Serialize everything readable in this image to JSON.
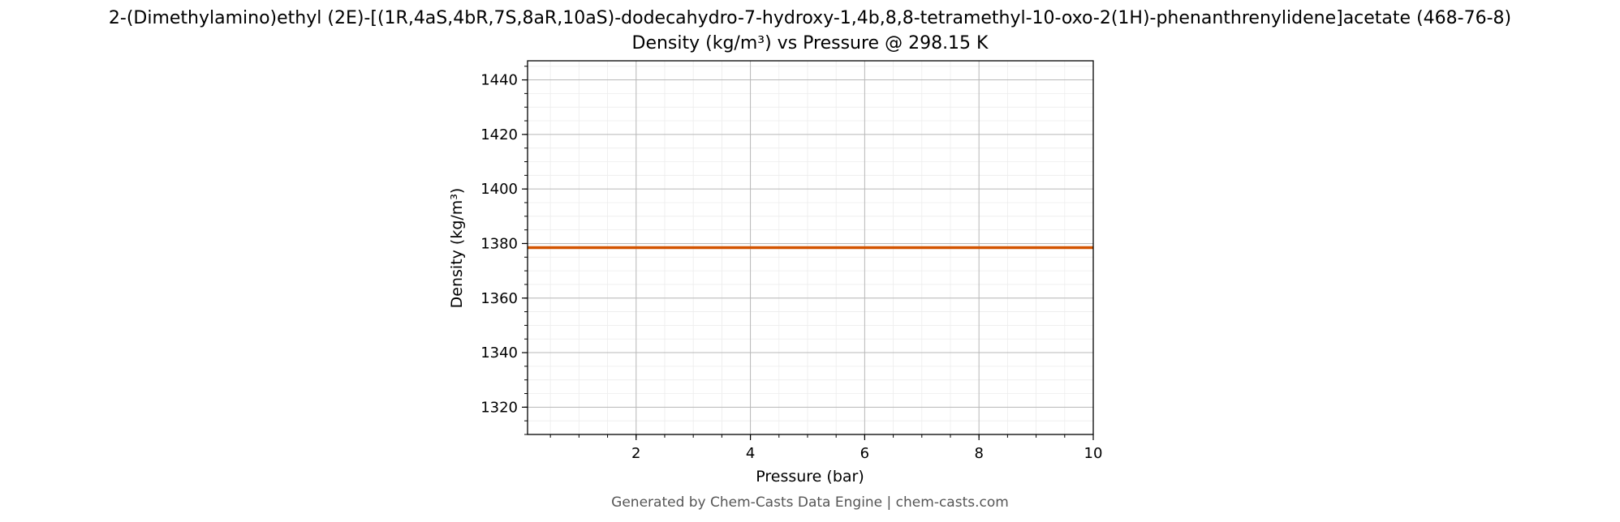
{
  "chart_data": {
    "type": "line",
    "title": "2-(Dimethylamino)ethyl (2E)-[(1R,4aS,4bR,7S,8aR,10aS)-dodecahydro-7-hydroxy-1,4b,8,8-tetramethyl-10-oxo-2(1H)-phenanthrenylidene]acetate (468-76-8)",
    "subtitle": "Density (kg/m³) vs Pressure @ 298.15 K",
    "xlabel": "Pressure (bar)",
    "ylabel": "Density (kg/m³)",
    "xlim": [
      0.1,
      10
    ],
    "ylim": [
      1310,
      1447
    ],
    "xticks": [
      2,
      4,
      6,
      8,
      10
    ],
    "yticks": [
      1320,
      1340,
      1360,
      1380,
      1400,
      1420,
      1440
    ],
    "grid": true,
    "series": [
      {
        "color": "#d35400",
        "x": [
          0.1,
          1,
          2,
          3,
          4,
          5,
          6,
          7,
          8,
          9,
          10
        ],
        "y": [
          1378.5,
          1378.5,
          1378.5,
          1378.5,
          1378.5,
          1378.5,
          1378.5,
          1378.5,
          1378.5,
          1378.5,
          1378.5
        ]
      }
    ]
  },
  "footer": "Generated by Chem-Casts Data Engine | chem-casts.com"
}
